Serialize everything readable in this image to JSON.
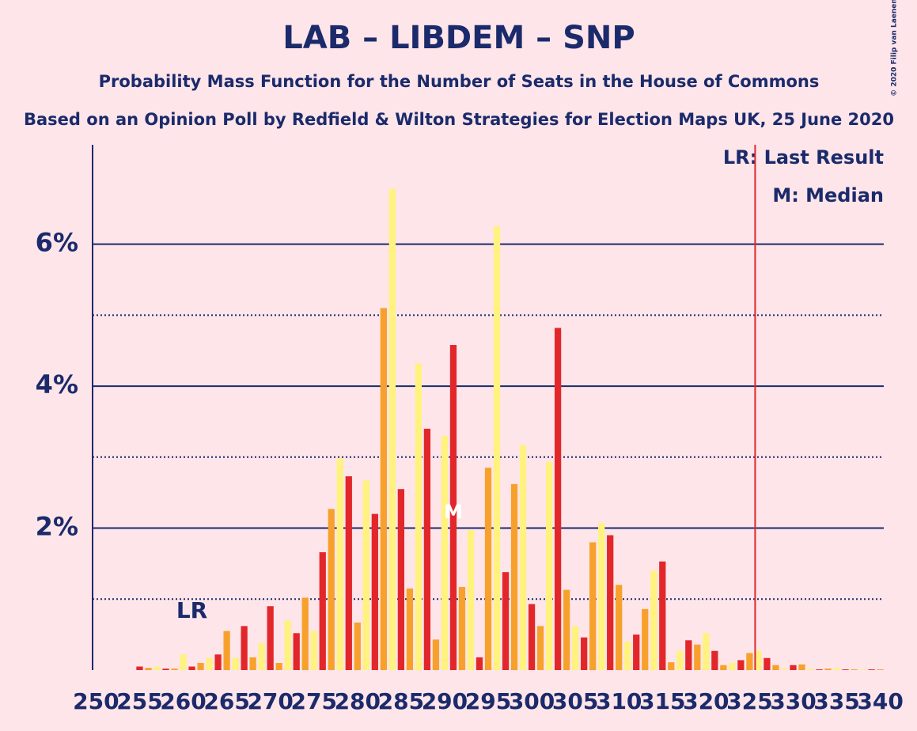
{
  "chart_data": {
    "type": "bar",
    "title": "LAB – LIBDEM – SNP",
    "subtitle": "Probability Mass Function for the Number of Seats in the House of Commons",
    "subtitle2": "Based on an Opinion Poll by Redfield & Wilton Strategies for Election Maps UK, 25 June 2020",
    "copyright": "© 2020 Filip van Laenen",
    "legend": [
      "LR: Last Result",
      "M: Median"
    ],
    "bar_colors": [
      "#f7a12c",
      "#fff27f",
      "#e2272b"
    ],
    "x": [
      250,
      251,
      252,
      253,
      254,
      255,
      256,
      257,
      258,
      259,
      260,
      261,
      262,
      263,
      264,
      265,
      266,
      267,
      268,
      269,
      270,
      271,
      272,
      273,
      274,
      275,
      276,
      277,
      278,
      279,
      280,
      281,
      282,
      283,
      284,
      285,
      286,
      287,
      288,
      289,
      290,
      291,
      292,
      293,
      294,
      295,
      296,
      297,
      298,
      299,
      300,
      301,
      302,
      303,
      304,
      305,
      306,
      307,
      308,
      309,
      310,
      311,
      312,
      313,
      314,
      315,
      316,
      317,
      318,
      319,
      320,
      321,
      322,
      323,
      324,
      325,
      326,
      327,
      328,
      329,
      330,
      331,
      332,
      333,
      334,
      335,
      336,
      337,
      338,
      339,
      340
    ],
    "values": [
      0,
      0,
      0,
      0,
      0,
      0.05,
      0.03,
      0.05,
      0.02,
      0.02,
      0.22,
      0.05,
      0.1,
      0.17,
      0.22,
      0.55,
      0.17,
      0.62,
      0.18,
      0.38,
      0.9,
      0.1,
      0.7,
      0.52,
      1.02,
      0.55,
      1.66,
      2.27,
      2.98,
      2.73,
      0.67,
      2.67,
      2.2,
      5.1,
      6.78,
      2.55,
      1.15,
      4.32,
      3.4,
      0.43,
      3.3,
      4.58,
      1.17,
      1.97,
      0.18,
      2.85,
      6.25,
      1.38,
      2.62,
      3.17,
      0.93,
      0.62,
      2.93,
      4.82,
      1.13,
      0.62,
      0.46,
      1.8,
      2.07,
      1.9,
      1.2,
      0.4,
      0.5,
      0.86,
      1.4,
      1.53,
      0.11,
      0.27,
      0.42,
      0.36,
      0.52,
      0.27,
      0.07,
      0.1,
      0.14,
      0.24,
      0.27,
      0.17,
      0.07,
      0.02,
      0.07,
      0.08,
      0.02,
      0.01,
      0.02,
      0.03,
      0.01,
      0.01,
      0.01,
      0.01,
      0.01
    ],
    "xlim": [
      249.6,
      340.4
    ],
    "xticks": [
      250,
      255,
      260,
      265,
      270,
      275,
      280,
      285,
      290,
      295,
      300,
      305,
      310,
      315,
      320,
      325,
      330,
      335,
      340
    ],
    "ylim": [
      0,
      7.4
    ],
    "yticks": [
      {
        "value": 2,
        "label": "2%"
      },
      {
        "value": 4,
        "label": "4%"
      },
      {
        "value": 6,
        "label": "6%"
      }
    ],
    "minor_yticks": [
      1,
      3,
      5
    ],
    "last_result": {
      "x": 261,
      "label": "LR"
    },
    "median": {
      "x": 291,
      "label": "M"
    },
    "majority_line": 326,
    "grid": true
  }
}
